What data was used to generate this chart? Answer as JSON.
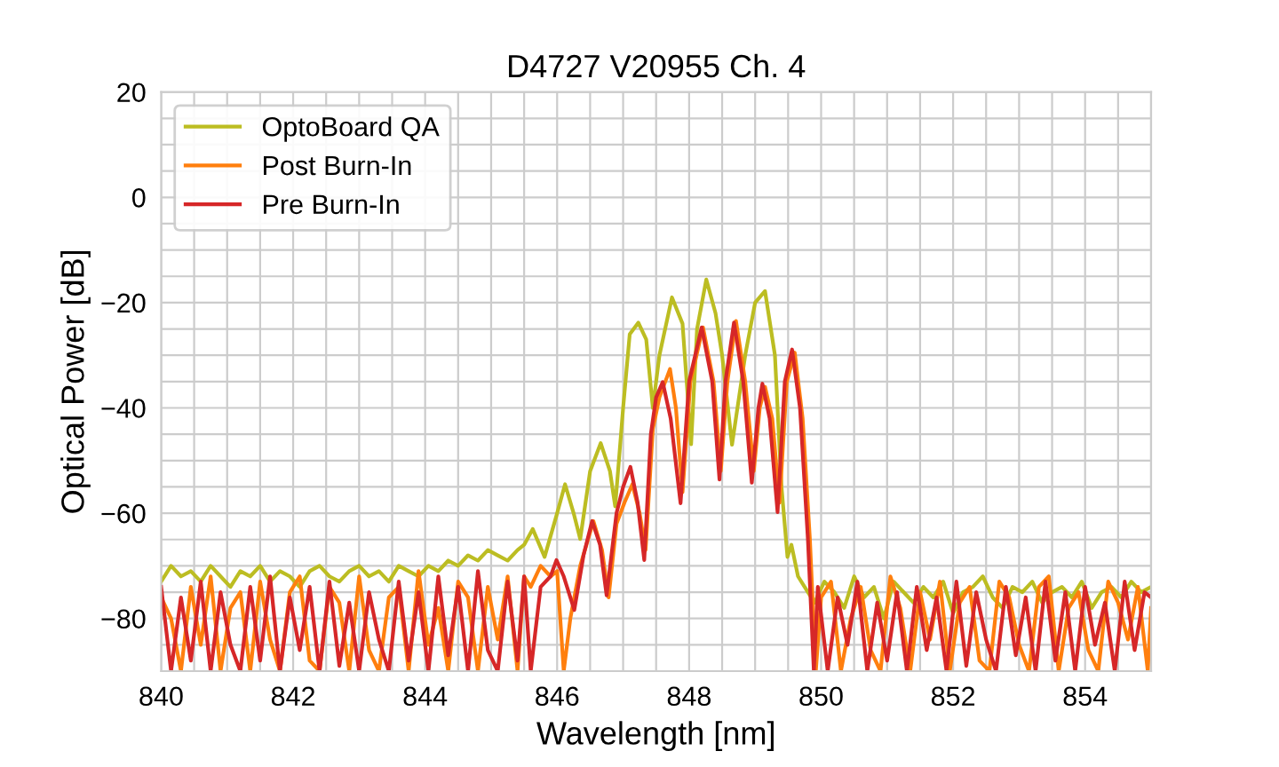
{
  "chart_data": {
    "type": "line",
    "title": "D4727 V20955 Ch. 4",
    "xlabel": "Wavelength [nm]",
    "ylabel": "Optical Power [dB]",
    "xlim": [
      840,
      855
    ],
    "ylim": [
      -90,
      20
    ],
    "xticks": [
      840,
      {
        "value": 840.5,
        "label": null
      },
      {
        "value": 841,
        "label": null
      },
      {
        "value": 841.5,
        "label": null
      },
      842,
      {
        "value": 842.5,
        "label": null
      },
      {
        "value": 843,
        "label": null
      },
      {
        "value": 843.5,
        "label": null
      },
      844,
      {
        "value": 844.5,
        "label": null
      },
      {
        "value": 845,
        "label": null
      },
      {
        "value": 845.5,
        "label": null
      },
      846,
      {
        "value": 846.5,
        "label": null
      },
      {
        "value": 847,
        "label": null
      },
      {
        "value": 847.5,
        "label": null
      },
      848,
      {
        "value": 848.5,
        "label": null
      },
      {
        "value": 849,
        "label": null
      },
      {
        "value": 849.5,
        "label": null
      },
      850,
      {
        "value": 850.5,
        "label": null
      },
      {
        "value": 851,
        "label": null
      },
      {
        "value": 851.5,
        "label": null
      },
      852,
      {
        "value": 852.5,
        "label": null
      },
      {
        "value": 853,
        "label": null
      },
      {
        "value": 853.5,
        "label": null
      },
      854,
      {
        "value": 854.5,
        "label": null
      },
      {
        "value": 855,
        "label": null
      }
    ],
    "yticks": [
      {
        "value": -90,
        "label": null
      },
      {
        "value": -85,
        "label": null
      },
      {
        "value": -80,
        "label": "−80"
      },
      {
        "value": -75,
        "label": null
      },
      {
        "value": -70,
        "label": null
      },
      {
        "value": -65,
        "label": null
      },
      {
        "value": -60,
        "label": "−60"
      },
      {
        "value": -55,
        "label": null
      },
      {
        "value": -50,
        "label": null
      },
      {
        "value": -45,
        "label": null
      },
      {
        "value": -40,
        "label": "−40"
      },
      {
        "value": -35,
        "label": null
      },
      {
        "value": -30,
        "label": null
      },
      {
        "value": -25,
        "label": null
      },
      {
        "value": -20,
        "label": "−20"
      },
      {
        "value": -15,
        "label": null
      },
      {
        "value": -10,
        "label": null
      },
      {
        "value": -5,
        "label": null
      },
      0,
      {
        "value": 5,
        "label": null
      },
      {
        "value": 10,
        "label": null
      },
      {
        "value": 15,
        "label": null
      },
      20
    ],
    "grid": true,
    "legend": "top left",
    "line_style": "solid",
    "series": [
      {
        "name": "OptoBoard QA",
        "color": "#bcbd22",
        "x": [
          840,
          840.15,
          840.3,
          840.45,
          840.6,
          840.75,
          840.9,
          841.05,
          841.2,
          841.35,
          841.5,
          841.65,
          841.8,
          841.95,
          842.1,
          842.25,
          842.4,
          842.55,
          842.7,
          842.85,
          843,
          843.15,
          843.3,
          843.45,
          843.6,
          843.75,
          843.9,
          844.05,
          844.2,
          844.35,
          844.5,
          844.65,
          844.8,
          844.95,
          845.1,
          845.25,
          845.4,
          845.5,
          845.63,
          845.81,
          846.0,
          846.12,
          846.25,
          846.35,
          846.5,
          846.66,
          846.8,
          846.88,
          847.0,
          847.1,
          847.23,
          847.35,
          847.45,
          847.55,
          847.74,
          847.9,
          848.03,
          848.12,
          848.26,
          848.4,
          848.5,
          848.65,
          848.85,
          849.0,
          849.15,
          849.3,
          849.4,
          849.49,
          849.55,
          849.65,
          849.75,
          849.9,
          850.05,
          850.2,
          850.35,
          850.5,
          850.65,
          850.8,
          850.95,
          851.1,
          851.25,
          851.4,
          851.55,
          851.7,
          851.85,
          852,
          852.15,
          852.3,
          852.45,
          852.6,
          852.75,
          852.9,
          853.05,
          853.2,
          853.35,
          853.5,
          853.65,
          853.8,
          853.95,
          854.1,
          854.25,
          854.4,
          854.55,
          854.7,
          854.85,
          855
        ],
        "values": [
          -73,
          -70,
          -72,
          -71,
          -73,
          -70,
          -72,
          -74,
          -71,
          -72,
          -70,
          -73,
          -71,
          -72,
          -74,
          -71,
          -70,
          -72,
          -73,
          -71,
          -70,
          -72,
          -71,
          -73,
          -70,
          -71,
          -72,
          -70,
          -71,
          -69,
          -70,
          -68,
          -69,
          -67,
          -68,
          -69,
          -67,
          -66,
          -63,
          -68.3,
          -60,
          -54.5,
          -60,
          -64.9,
          -52,
          -46.7,
          -52,
          -58.7,
          -40,
          -26,
          -23.8,
          -27,
          -40,
          -30,
          -19,
          -24,
          -46.9,
          -25,
          -15.6,
          -22,
          -30,
          -47,
          -30,
          -20,
          -17.8,
          -30,
          -55,
          -68.3,
          -66,
          -72,
          -74,
          -77,
          -73,
          -75,
          -78,
          -72,
          -76,
          -74,
          -80,
          -73,
          -75,
          -77,
          -74,
          -76,
          -73,
          -79,
          -75,
          -74,
          -72,
          -76,
          -78,
          -74,
          -75,
          -73,
          -77,
          -75,
          -74,
          -76,
          -73,
          -78,
          -75,
          -74,
          -76,
          -73,
          -75,
          -74
        ]
      },
      {
        "name": "Post Burn-In",
        "color": "#ff7f0e",
        "x": [
          840,
          840.15,
          840.3,
          840.45,
          840.6,
          840.75,
          840.9,
          841.05,
          841.2,
          841.35,
          841.5,
          841.65,
          841.8,
          841.95,
          842.1,
          842.25,
          842.4,
          842.55,
          842.7,
          842.85,
          843,
          843.15,
          843.3,
          843.45,
          843.6,
          843.75,
          843.9,
          844.05,
          844.2,
          844.35,
          844.5,
          844.65,
          844.8,
          844.95,
          845.1,
          845.25,
          845.4,
          845.5,
          845.6,
          845.75,
          845.9,
          846.0,
          846.1,
          846.2,
          846.35,
          846.55,
          846.68,
          846.78,
          846.9,
          847.02,
          847.14,
          847.25,
          847.34,
          847.45,
          847.55,
          847.71,
          847.8,
          847.9,
          848.02,
          848.21,
          848.37,
          848.48,
          848.58,
          848.71,
          848.85,
          848.98,
          849.07,
          849.15,
          849.26,
          849.37,
          849.48,
          849.6,
          849.72,
          849.83,
          849.92,
          850,
          850.15,
          850.3,
          850.45,
          850.6,
          850.75,
          850.9,
          851.05,
          851.2,
          851.35,
          851.5,
          851.65,
          851.8,
          851.95,
          852.1,
          852.25,
          852.4,
          852.55,
          852.7,
          852.85,
          853,
          853.15,
          853.3,
          853.45,
          853.6,
          853.75,
          853.9,
          854.05,
          854.2,
          854.35,
          854.5,
          854.65,
          854.8,
          854.95,
          855
        ],
        "values": [
          -76,
          -80,
          -90,
          -74,
          -85,
          -72,
          -90,
          -78,
          -75,
          -90,
          -73,
          -84,
          -90,
          -75,
          -72,
          -88,
          -90,
          -74,
          -77,
          -90,
          -72,
          -86,
          -90,
          -76,
          -74,
          -90,
          -71,
          -85,
          -78,
          -90,
          -73,
          -76,
          -90,
          -74,
          -84,
          -72,
          -90,
          -72,
          -74,
          -70,
          -72,
          -71,
          -90,
          -80,
          -70,
          -61.5,
          -67,
          -76,
          -62,
          -58,
          -54.5,
          -60,
          -67,
          -44,
          -38,
          -32.6,
          -40,
          -56,
          -35,
          -24.7,
          -35,
          -52,
          -35,
          -23.5,
          -35,
          -52,
          -40,
          -36,
          -42,
          -58,
          -35,
          -29.5,
          -42,
          -65,
          -90,
          -76,
          -73,
          -90,
          -80,
          -74,
          -86,
          -90,
          -72,
          -78,
          -90,
          -75,
          -84,
          -73,
          -90,
          -77,
          -74,
          -88,
          -90,
          -73,
          -76,
          -85,
          -90,
          -74,
          -72,
          -90,
          -78,
          -75,
          -86,
          -90,
          -73,
          -77,
          -84,
          -74,
          -90,
          -78
        ]
      },
      {
        "name": "Pre Burn-In",
        "color": "#d62728",
        "x": [
          840,
          840.15,
          840.3,
          840.45,
          840.6,
          840.75,
          840.9,
          841.05,
          841.2,
          841.35,
          841.5,
          841.65,
          841.8,
          841.95,
          842.1,
          842.25,
          842.4,
          842.55,
          842.7,
          842.85,
          843,
          843.15,
          843.3,
          843.45,
          843.6,
          843.75,
          843.9,
          844.05,
          844.2,
          844.35,
          844.5,
          844.65,
          844.8,
          844.95,
          845.1,
          845.25,
          845.4,
          845.5,
          845.6,
          845.75,
          845.9,
          845.99,
          846.1,
          846.26,
          846.4,
          846.53,
          846.65,
          846.75,
          846.9,
          847.0,
          847.11,
          847.22,
          847.32,
          847.42,
          847.5,
          847.6,
          847.72,
          847.87,
          848.0,
          848.19,
          848.35,
          848.46,
          848.55,
          848.68,
          848.82,
          848.95,
          849.05,
          849.11,
          849.22,
          849.34,
          849.45,
          849.56,
          849.68,
          849.8,
          849.89,
          849.95,
          850.1,
          850.25,
          850.4,
          850.55,
          850.7,
          850.85,
          851,
          851.15,
          851.3,
          851.45,
          851.6,
          851.75,
          851.9,
          852.05,
          852.2,
          852.35,
          852.5,
          852.65,
          852.8,
          852.95,
          853.1,
          853.25,
          853.4,
          853.55,
          853.7,
          853.85,
          854,
          854.15,
          854.3,
          854.45,
          854.6,
          854.75,
          854.9,
          855
        ],
        "values": [
          -74,
          -90,
          -76,
          -88,
          -73,
          -90,
          -75,
          -85,
          -90,
          -74,
          -88,
          -72,
          -90,
          -76,
          -86,
          -74,
          -90,
          -73,
          -89,
          -77,
          -90,
          -75,
          -84,
          -90,
          -73,
          -88,
          -75,
          -90,
          -72,
          -87,
          -74,
          -90,
          -71,
          -86,
          -90,
          -73,
          -88,
          -72,
          -90,
          -74,
          -72,
          -68.9,
          -72,
          -78.4,
          -68,
          -61.5,
          -66,
          -75.6,
          -60,
          -55,
          -51.2,
          -58,
          -68.9,
          -45,
          -38,
          -35.1,
          -42,
          -58.1,
          -35,
          -24.7,
          -35,
          -53.6,
          -35,
          -23.8,
          -35,
          -54.2,
          -40,
          -35.4,
          -42,
          -59.8,
          -35,
          -28.9,
          -40,
          -65,
          -90,
          -74,
          -90,
          -76,
          -85,
          -73,
          -90,
          -77,
          -88,
          -75,
          -90,
          -74,
          -86,
          -76,
          -90,
          -73,
          -89,
          -75,
          -84,
          -90,
          -74,
          -87,
          -76,
          -90,
          -73,
          -88,
          -75,
          -90,
          -74,
          -85,
          -77,
          -90,
          -73,
          -86,
          -75,
          -76
        ]
      }
    ]
  }
}
